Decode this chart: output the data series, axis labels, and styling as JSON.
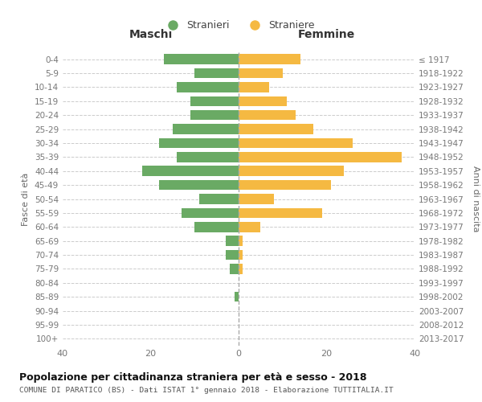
{
  "age_groups": [
    "0-4",
    "5-9",
    "10-14",
    "15-19",
    "20-24",
    "25-29",
    "30-34",
    "35-39",
    "40-44",
    "45-49",
    "50-54",
    "55-59",
    "60-64",
    "65-69",
    "70-74",
    "75-79",
    "80-84",
    "85-89",
    "90-94",
    "95-99",
    "100+"
  ],
  "birth_years": [
    "2013-2017",
    "2008-2012",
    "2003-2007",
    "1998-2002",
    "1993-1997",
    "1988-1992",
    "1983-1987",
    "1978-1982",
    "1973-1977",
    "1968-1972",
    "1963-1967",
    "1958-1962",
    "1953-1957",
    "1948-1952",
    "1943-1947",
    "1938-1942",
    "1933-1937",
    "1928-1932",
    "1923-1927",
    "1918-1922",
    "≤ 1917"
  ],
  "maschi": [
    17,
    10,
    14,
    11,
    11,
    15,
    18,
    14,
    22,
    18,
    9,
    13,
    10,
    3,
    3,
    2,
    0,
    1,
    0,
    0,
    0
  ],
  "femmine": [
    14,
    10,
    7,
    11,
    13,
    17,
    26,
    37,
    24,
    21,
    8,
    19,
    5,
    1,
    1,
    1,
    0,
    0,
    0,
    0,
    0
  ],
  "maschi_color": "#6aaa64",
  "femmine_color": "#f5b942",
  "xlim": 40,
  "title": "Popolazione per cittadinanza straniera per età e sesso - 2018",
  "subtitle": "COMUNE DI PARATICO (BS) - Dati ISTAT 1° gennaio 2018 - Elaborazione TUTTITALIA.IT",
  "xlabel_left": "Maschi",
  "xlabel_right": "Femmine",
  "ylabel_left": "Fasce di età",
  "ylabel_right": "Anni di nascita",
  "legend_stranieri": "Stranieri",
  "legend_straniere": "Straniere",
  "bg_color": "#ffffff",
  "grid_color": "#cccccc",
  "axis_label_color": "#666666",
  "tick_color": "#777777"
}
